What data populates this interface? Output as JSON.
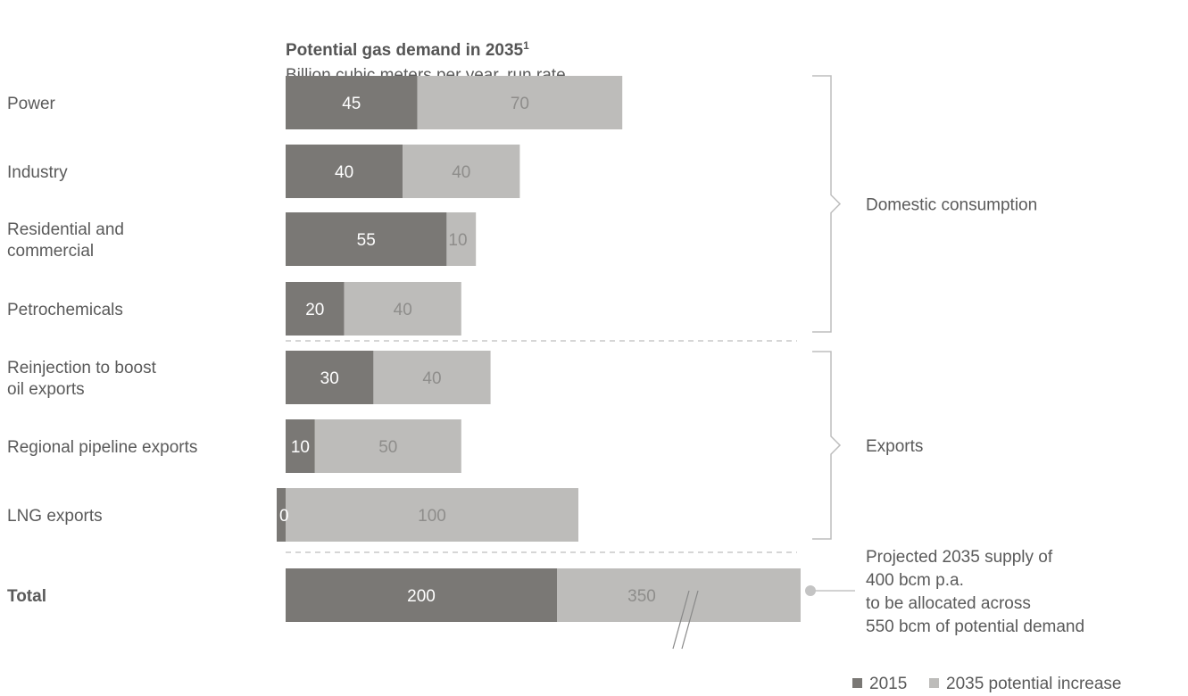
{
  "chart_data": {
    "type": "bar",
    "orientation": "horizontal",
    "stacked": true,
    "title": "Potential gas demand in 2035",
    "title_footnote": "1",
    "subtitle": "Billion cubic meters per year, run rate",
    "categories": [
      "Power",
      "Industry",
      "Residential and commercial",
      "Petrochemicals",
      "Reinjection to boost oil exports",
      "Regional pipeline exports",
      "LNG exports",
      "Total"
    ],
    "series": [
      {
        "name": "2015",
        "values": [
          45,
          40,
          55,
          20,
          30,
          10,
          0,
          200
        ],
        "color": "#7a7875"
      },
      {
        "name": "2035 potential increase",
        "values": [
          70,
          40,
          10,
          40,
          40,
          50,
          100,
          350
        ],
        "color": "#bdbcba"
      }
    ],
    "axis_break_on": "Total",
    "groups": [
      {
        "label": "Domestic consumption",
        "categories": [
          "Power",
          "Industry",
          "Residential and commercial",
          "Petrochemicals"
        ]
      },
      {
        "label": "Exports",
        "categories": [
          "Reinjection to boost oil exports",
          "Regional pipeline exports",
          "LNG exports"
        ]
      }
    ],
    "annotation": "Projected 2035 supply of 400 bcm p.a. to be allocated across 550 bcm of potential demand",
    "legend_position": "bottom-right",
    "grid": false
  }
}
